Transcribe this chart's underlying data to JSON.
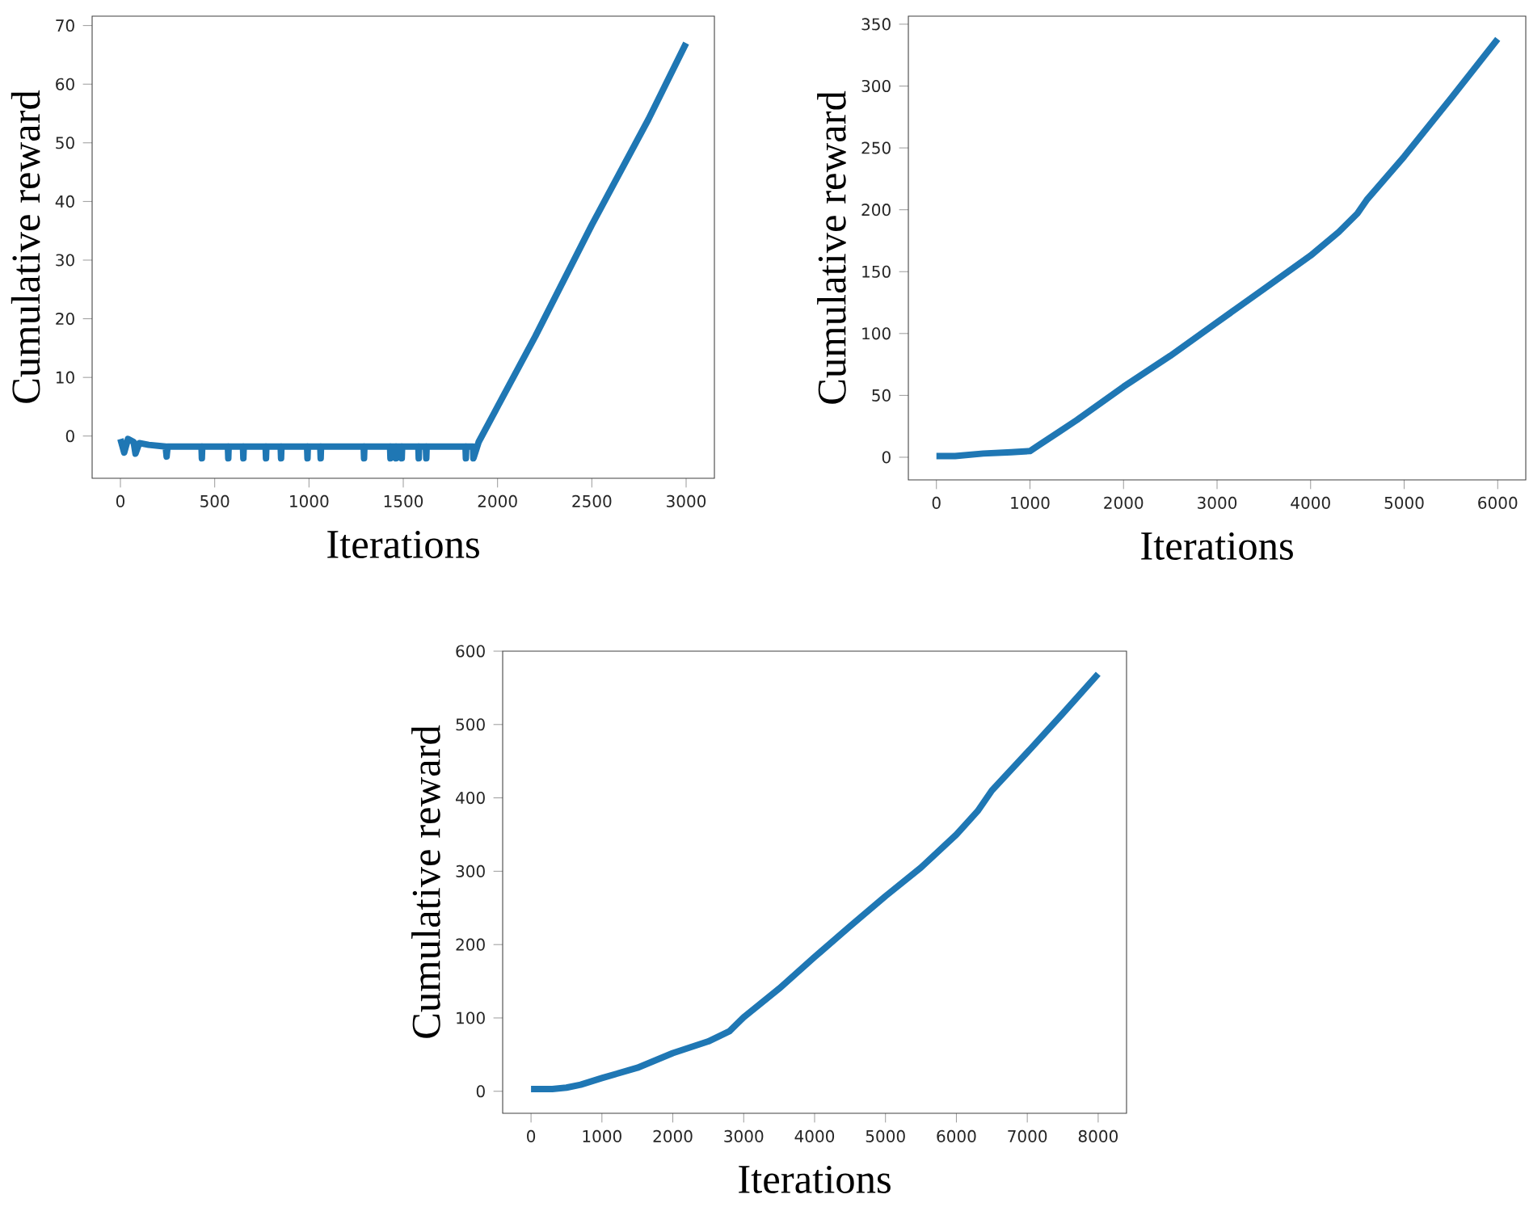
{
  "chart_data": [
    {
      "type": "line",
      "xlabel": "Iterations",
      "ylabel": "Cumulative reward",
      "xlim": [
        -150,
        3150
      ],
      "ylim": [
        -7.2,
        71.6
      ],
      "xticks": [
        0,
        500,
        1000,
        1500,
        2000,
        2500,
        3000
      ],
      "yticks": [
        0,
        10,
        20,
        30,
        40,
        50,
        60,
        70
      ],
      "series": [
        {
          "color": "#1f77b4",
          "x": [
            0,
            20,
            40,
            70,
            80,
            100,
            150,
            240,
            245,
            250,
            430,
            432,
            434,
            570,
            572,
            574,
            650,
            652,
            654,
            770,
            772,
            774,
            850,
            852,
            854,
            990,
            992,
            994,
            1060,
            1062,
            1064,
            1290,
            1292,
            1294,
            1430,
            1432,
            1434,
            1460,
            1462,
            1464,
            1490,
            1492,
            1494,
            1580,
            1582,
            1584,
            1620,
            1622,
            1624,
            1830,
            1832,
            1834,
            1870,
            1872,
            1890,
            1900,
            2000,
            2200,
            2500,
            2800,
            3000
          ],
          "values": [
            -0.5,
            -2.8,
            -0.5,
            -1,
            -3,
            -1.2,
            -1.5,
            -1.8,
            -3.5,
            -1.8,
            -1.8,
            -3.8,
            -1.8,
            -1.8,
            -3.8,
            -1.8,
            -1.8,
            -3.8,
            -1.8,
            -1.8,
            -3.8,
            -1.8,
            -1.8,
            -3.8,
            -1.8,
            -1.8,
            -3.8,
            -1.8,
            -1.8,
            -3.8,
            -1.8,
            -1.8,
            -3.8,
            -1.8,
            -1.8,
            -3.8,
            -1.8,
            -1.8,
            -3.8,
            -1.8,
            -1.8,
            -3.8,
            -1.8,
            -1.8,
            -3.8,
            -1.8,
            -1.8,
            -3.8,
            -1.8,
            -1.8,
            -3.8,
            -1.8,
            -1.8,
            -3.8,
            -2,
            -1,
            5,
            17,
            36,
            54,
            67
          ]
        }
      ]
    },
    {
      "type": "line",
      "xlabel": "Iterations",
      "ylabel": "Cumulative reward",
      "xlim": [
        -300,
        6300
      ],
      "ylim": [
        -18.3,
        356.5
      ],
      "xticks": [
        0,
        1000,
        2000,
        3000,
        4000,
        5000,
        6000
      ],
      "yticks": [
        0,
        50,
        100,
        150,
        200,
        250,
        300,
        350
      ],
      "series": [
        {
          "color": "#1f77b4",
          "x": [
            0,
            200,
            500,
            800,
            1000,
            1100,
            1300,
            1500,
            2000,
            2500,
            3000,
            3500,
            4000,
            4300,
            4500,
            4600,
            5000,
            5500,
            6000
          ],
          "values": [
            1,
            1,
            3,
            4,
            5,
            10,
            20,
            30,
            57,
            82,
            109,
            136,
            163,
            182,
            197,
            208,
            243,
            290,
            338
          ]
        }
      ]
    },
    {
      "type": "line",
      "xlabel": "Iterations",
      "ylabel": "Cumulative reward",
      "xlim": [
        -400,
        8400
      ],
      "ylim": [
        -30,
        600
      ],
      "xticks": [
        0,
        1000,
        2000,
        3000,
        4000,
        5000,
        6000,
        7000,
        8000
      ],
      "yticks": [
        0,
        100,
        200,
        300,
        400,
        500,
        600
      ],
      "series": [
        {
          "color": "#1f77b4",
          "x": [
            0,
            300,
            500,
            700,
            1000,
            1500,
            2000,
            2500,
            2800,
            3000,
            3500,
            4000,
            4500,
            5000,
            5500,
            6000,
            6300,
            6500,
            7000,
            7500,
            8000
          ],
          "values": [
            3,
            3,
            5,
            9,
            18,
            32,
            52,
            68,
            82,
            101,
            140,
            183,
            225,
            266,
            305,
            350,
            382,
            410,
            462,
            515,
            569
          ]
        }
      ]
    }
  ]
}
